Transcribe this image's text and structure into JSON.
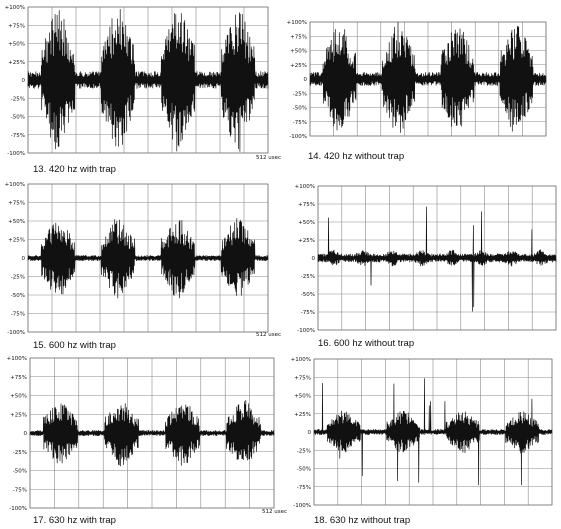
{
  "chart_data": [
    {
      "type": "line",
      "caption": "13. 420 hz with trap",
      "x_unit_label": "512 usec",
      "yticks": [
        "+100%",
        "+75%",
        "+50%",
        "+25%",
        "0",
        "-25%",
        "-50%",
        "-75%",
        "-100%"
      ],
      "ylim": [
        -100,
        100
      ],
      "grid": true,
      "bursts": 4,
      "burst_peak_pct": 100,
      "baseline_pct": 12,
      "spikes": false
    },
    {
      "type": "line",
      "caption": "14. 420 hz without trap",
      "x_unit_label": "",
      "yticks": [
        "+100%",
        "+75%",
        "+50%",
        "+25%",
        "0",
        "-25%",
        "-50%",
        "-75%",
        "-100%"
      ],
      "ylim": [
        -100,
        100
      ],
      "grid": true,
      "bursts": 4,
      "burst_peak_pct": 100,
      "baseline_pct": 12,
      "spikes": false
    },
    {
      "type": "line",
      "caption": "15. 600 hz with trap",
      "x_unit_label": "512 usec",
      "yticks": [
        "+100%",
        "+75%",
        "+50%",
        "+25%",
        "0",
        "-25%",
        "-50%",
        "-75%",
        "-100%"
      ],
      "ylim": [
        -100,
        100
      ],
      "grid": true,
      "bursts": 4,
      "burst_peak_pct": 55,
      "baseline_pct": 4,
      "spikes": false
    },
    {
      "type": "line",
      "caption": "16. 600 hz without trap",
      "x_unit_label": "",
      "yticks": [
        "+100%",
        "+75%",
        "+50%",
        "+25%",
        "0",
        "-25%",
        "-50%",
        "-75%",
        "-100%"
      ],
      "ylim": [
        -100,
        100
      ],
      "grid": true,
      "bursts": 8,
      "burst_peak_pct": 12,
      "baseline_pct": 6,
      "spikes": true
    },
    {
      "type": "line",
      "caption": "17. 630 hz with trap",
      "x_unit_label": "512 usec",
      "yticks": [
        "+100%",
        "+75%",
        "+50%",
        "+25%",
        "0",
        "-25%",
        "-50%",
        "-75%",
        "-100%"
      ],
      "ylim": [
        -100,
        100
      ],
      "grid": true,
      "bursts": 4,
      "burst_peak_pct": 45,
      "baseline_pct": 4,
      "spikes": false
    },
    {
      "type": "line",
      "caption": "18. 630 hz without trap",
      "x_unit_label": "",
      "yticks": [
        "+100%",
        "+75%",
        "+50%",
        "+25%",
        "0",
        "-25%",
        "-50%",
        "-75%",
        "-100%"
      ],
      "ylim": [
        -100,
        100
      ],
      "grid": true,
      "bursts": 4,
      "burst_peak_pct": 30,
      "baseline_pct": 4,
      "spikes": true
    }
  ]
}
